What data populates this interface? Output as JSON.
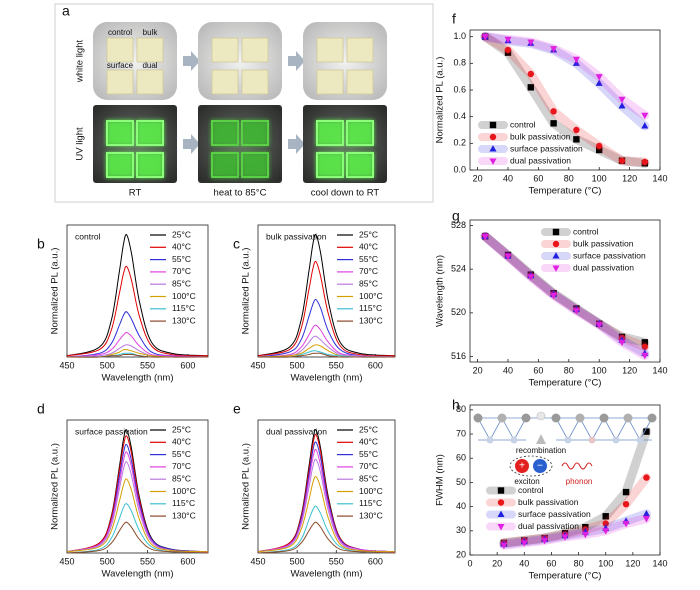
{
  "photo_panel": {
    "panel_label": "a",
    "row_labels": [
      "white light",
      "UV light"
    ],
    "column_labels": [
      "RT",
      "heat to 85°C",
      "cool down to RT"
    ],
    "sample_labels": [
      "control",
      "bulk",
      "surface",
      "dual"
    ]
  },
  "chart_data": [
    {
      "type": "line",
      "panel_label": "b",
      "title": "control",
      "xlabel": "Wavelength (nm)",
      "ylabel": "Normalized PL (a.u.)",
      "xlim": [
        450,
        625
      ],
      "ylim": [
        0,
        1.08
      ],
      "xticks": [
        450,
        500,
        550,
        600
      ],
      "legend": "top-right",
      "smooth": true,
      "x": [
        450,
        490,
        505,
        515,
        520,
        524,
        530,
        540,
        555,
        580,
        625
      ],
      "series": [
        {
          "name": "25°C",
          "color": "#000000",
          "values": [
            0.01,
            0.08,
            0.3,
            0.7,
            0.92,
            1,
            0.85,
            0.45,
            0.12,
            0.03,
            0.01
          ]
        },
        {
          "name": "40°C",
          "color": "#e00000",
          "values": [
            0.01,
            0.06,
            0.22,
            0.52,
            0.68,
            0.74,
            0.63,
            0.33,
            0.09,
            0.02,
            0.01
          ]
        },
        {
          "name": "55°C",
          "color": "#2f2fd8",
          "values": [
            0,
            0.03,
            0.11,
            0.26,
            0.34,
            0.37,
            0.31,
            0.17,
            0.04,
            0.01,
            0
          ]
        },
        {
          "name": "70°C",
          "color": "#e040e0",
          "values": [
            0,
            0.02,
            0.06,
            0.14,
            0.18,
            0.2,
            0.17,
            0.09,
            0.02,
            0.01,
            0
          ]
        },
        {
          "name": "85°C",
          "color": "#b878e0",
          "values": [
            0,
            0.01,
            0.03,
            0.07,
            0.09,
            0.1,
            0.09,
            0.05,
            0.01,
            0,
            0
          ]
        },
        {
          "name": "100°C",
          "color": "#d4a000",
          "values": [
            0,
            0,
            0.02,
            0.04,
            0.06,
            0.06,
            0.05,
            0.03,
            0.01,
            0,
            0
          ]
        },
        {
          "name": "115°C",
          "color": "#3cc0d0",
          "values": [
            0,
            0,
            0.01,
            0.02,
            0.03,
            0.03,
            0.03,
            0.01,
            0,
            0,
            0
          ]
        },
        {
          "name": "130°C",
          "color": "#8b4a2b",
          "values": [
            0,
            0,
            0.01,
            0.01,
            0.02,
            0.02,
            0.02,
            0.01,
            0,
            0,
            0
          ]
        }
      ]
    },
    {
      "type": "line",
      "panel_label": "c",
      "title": "bulk passivation",
      "xlabel": "Wavelength (nm)",
      "ylabel": "Normalized PL (a.u.)",
      "xlim": [
        450,
        625
      ],
      "ylim": [
        0,
        1.08
      ],
      "xticks": [
        450,
        500,
        550,
        600
      ],
      "legend": "top-right",
      "smooth": true,
      "x": [
        450,
        490,
        505,
        515,
        520,
        524,
        530,
        540,
        555,
        580,
        625
      ],
      "series": [
        {
          "name": "25°C",
          "color": "#000000",
          "values": [
            0.01,
            0.08,
            0.3,
            0.7,
            0.92,
            1,
            0.85,
            0.45,
            0.12,
            0.03,
            0.01
          ]
        },
        {
          "name": "40°C",
          "color": "#e00000",
          "values": [
            0.01,
            0.06,
            0.23,
            0.55,
            0.72,
            0.78,
            0.66,
            0.35,
            0.09,
            0.02,
            0.01
          ]
        },
        {
          "name": "55°C",
          "color": "#2f2fd8",
          "values": [
            0,
            0.04,
            0.14,
            0.33,
            0.43,
            0.47,
            0.4,
            0.21,
            0.06,
            0.01,
            0
          ]
        },
        {
          "name": "70°C",
          "color": "#e040e0",
          "values": [
            0,
            0.02,
            0.08,
            0.18,
            0.24,
            0.26,
            0.22,
            0.12,
            0.03,
            0.01,
            0
          ]
        },
        {
          "name": "85°C",
          "color": "#b878e0",
          "values": [
            0,
            0.01,
            0.05,
            0.12,
            0.16,
            0.17,
            0.14,
            0.08,
            0.02,
            0.01,
            0
          ]
        },
        {
          "name": "100°C",
          "color": "#d4a000",
          "values": [
            0,
            0.01,
            0.03,
            0.07,
            0.09,
            0.1,
            0.09,
            0.05,
            0.01,
            0,
            0
          ]
        },
        {
          "name": "115°C",
          "color": "#3cc0d0",
          "values": [
            0,
            0,
            0.02,
            0.04,
            0.05,
            0.05,
            0.04,
            0.02,
            0.01,
            0,
            0
          ]
        },
        {
          "name": "130°C",
          "color": "#8b4a2b",
          "values": [
            0,
            0,
            0.01,
            0.02,
            0.03,
            0.03,
            0.03,
            0.01,
            0,
            0,
            0
          ]
        }
      ]
    },
    {
      "type": "line",
      "panel_label": "d",
      "title": "surface passivation",
      "xlabel": "Wavelength (nm)",
      "ylabel": "Normalized PL (a.u.)",
      "xlim": [
        450,
        625
      ],
      "ylim": [
        0,
        1.08
      ],
      "xticks": [
        450,
        500,
        550,
        600
      ],
      "legend": "top-right",
      "smooth": true,
      "x": [
        450,
        490,
        505,
        515,
        520,
        524,
        530,
        540,
        555,
        580,
        625
      ],
      "series": [
        {
          "name": "25°C",
          "color": "#000000",
          "values": [
            0.01,
            0.08,
            0.3,
            0.7,
            0.92,
            1,
            0.85,
            0.45,
            0.12,
            0.03,
            0.01
          ]
        },
        {
          "name": "40°C",
          "color": "#e00000",
          "values": [
            0.01,
            0.08,
            0.29,
            0.67,
            0.87,
            0.95,
            0.81,
            0.43,
            0.11,
            0.03,
            0.01
          ]
        },
        {
          "name": "55°C",
          "color": "#2f2fd8",
          "values": [
            0.01,
            0.07,
            0.26,
            0.62,
            0.81,
            0.88,
            0.75,
            0.4,
            0.11,
            0.03,
            0.01
          ]
        },
        {
          "name": "70°C",
          "color": "#e040e0",
          "values": [
            0.01,
            0.07,
            0.25,
            0.57,
            0.75,
            0.82,
            0.7,
            0.37,
            0.1,
            0.02,
            0.01
          ]
        },
        {
          "name": "85°C",
          "color": "#b878e0",
          "values": [
            0.01,
            0.06,
            0.22,
            0.52,
            0.68,
            0.74,
            0.63,
            0.33,
            0.09,
            0.02,
            0.01
          ]
        },
        {
          "name": "100°C",
          "color": "#d4a000",
          "values": [
            0.01,
            0.05,
            0.18,
            0.42,
            0.55,
            0.6,
            0.51,
            0.27,
            0.07,
            0.02,
            0.01
          ]
        },
        {
          "name": "115°C",
          "color": "#3cc0d0",
          "values": [
            0,
            0.03,
            0.12,
            0.28,
            0.37,
            0.4,
            0.34,
            0.18,
            0.05,
            0.01,
            0
          ]
        },
        {
          "name": "130°C",
          "color": "#8b4a2b",
          "values": [
            0,
            0.02,
            0.08,
            0.18,
            0.23,
            0.25,
            0.21,
            0.11,
            0.03,
            0.01,
            0
          ]
        }
      ]
    },
    {
      "type": "line",
      "panel_label": "e",
      "title": "dual passivation",
      "xlabel": "Wavelength (nm)",
      "ylabel": "Normalized PL (a.u.)",
      "xlim": [
        450,
        625
      ],
      "ylim": [
        0,
        1.08
      ],
      "xticks": [
        450,
        500,
        550,
        600
      ],
      "legend": "top-right",
      "smooth": true,
      "x": [
        450,
        490,
        505,
        515,
        520,
        524,
        530,
        540,
        555,
        580,
        625
      ],
      "series": [
        {
          "name": "25°C",
          "color": "#000000",
          "values": [
            0.01,
            0.08,
            0.3,
            0.7,
            0.92,
            1,
            0.85,
            0.45,
            0.12,
            0.03,
            0.01
          ]
        },
        {
          "name": "40°C",
          "color": "#e00000",
          "values": [
            0.01,
            0.08,
            0.29,
            0.67,
            0.88,
            0.96,
            0.82,
            0.43,
            0.12,
            0.03,
            0.01
          ]
        },
        {
          "name": "55°C",
          "color": "#2f2fd8",
          "values": [
            0.01,
            0.07,
            0.27,
            0.63,
            0.83,
            0.9,
            0.77,
            0.41,
            0.11,
            0.03,
            0.01
          ]
        },
        {
          "name": "70°C",
          "color": "#e040e0",
          "values": [
            0.01,
            0.07,
            0.25,
            0.59,
            0.77,
            0.84,
            0.71,
            0.38,
            0.1,
            0.03,
            0.01
          ]
        },
        {
          "name": "85°C",
          "color": "#b878e0",
          "values": [
            0.01,
            0.06,
            0.23,
            0.53,
            0.7,
            0.76,
            0.65,
            0.34,
            0.09,
            0.02,
            0.01
          ]
        },
        {
          "name": "100°C",
          "color": "#d4a000",
          "values": [
            0.01,
            0.05,
            0.19,
            0.43,
            0.57,
            0.62,
            0.53,
            0.28,
            0.07,
            0.02,
            0.01
          ]
        },
        {
          "name": "115°C",
          "color": "#3cc0d0",
          "values": [
            0,
            0.03,
            0.11,
            0.27,
            0.35,
            0.38,
            0.32,
            0.17,
            0.05,
            0.01,
            0
          ]
        },
        {
          "name": "130°C",
          "color": "#8b4a2b",
          "values": [
            0,
            0.02,
            0.08,
            0.18,
            0.23,
            0.25,
            0.21,
            0.11,
            0.03,
            0.01,
            0
          ]
        }
      ]
    },
    {
      "type": "line",
      "panel_label": "f",
      "xlabel": "Temperature (°C)",
      "ylabel": "Normalized PL (a.u.)",
      "xlim": [
        15,
        140
      ],
      "ylim": [
        0,
        1.05
      ],
      "xticks": [
        20,
        40,
        60,
        80,
        100,
        120,
        140
      ],
      "yticks": [
        {
          "value": 0,
          "label": "0.0"
        },
        0.2,
        0.4,
        0.6,
        0.8,
        {
          "value": 1,
          "label": "1.0"
        }
      ],
      "legend": "bottom-left",
      "markers": true,
      "band": true,
      "x": [
        25,
        40,
        55,
        70,
        85,
        100,
        115,
        130
      ],
      "series": [
        {
          "name": "control",
          "color": "#000000",
          "marker": "square",
          "values": [
            1,
            0.88,
            0.62,
            0.35,
            0.23,
            0.15,
            0.07,
            0.05
          ]
        },
        {
          "name": "bulk passivation",
          "color": "#e8151b",
          "marker": "circle",
          "values": [
            1,
            0.9,
            0.72,
            0.44,
            0.3,
            0.18,
            0.07,
            0.06
          ]
        },
        {
          "name": "surface passivation",
          "color": "#1f1fe0",
          "marker": "triangle-up",
          "values": [
            1,
            0.97,
            0.95,
            0.9,
            0.8,
            0.65,
            0.48,
            0.33
          ]
        },
        {
          "name": "dual passivation",
          "color": "#e020e0",
          "marker": "triangle-down",
          "values": [
            1,
            0.98,
            0.96,
            0.91,
            0.83,
            0.7,
            0.53,
            0.41
          ]
        }
      ]
    },
    {
      "type": "line",
      "panel_label": "g",
      "xlabel": "Temperature (°C)",
      "ylabel": "Wavelength (nm)",
      "xlim": [
        15,
        140
      ],
      "ylim": [
        515.5,
        528.5
      ],
      "xticks": [
        20,
        40,
        60,
        80,
        100,
        120,
        140
      ],
      "yticks": [
        516,
        520,
        524,
        528
      ],
      "legend": "top-right",
      "markers": true,
      "band": true,
      "x": [
        25,
        40,
        55,
        70,
        85,
        100,
        115,
        130
      ],
      "series": [
        {
          "name": "control",
          "color": "#000000",
          "marker": "square",
          "values": [
            527,
            525.3,
            523.5,
            521.8,
            520.4,
            519,
            517.8,
            517.3
          ]
        },
        {
          "name": "bulk passivation",
          "color": "#e8151b",
          "marker": "circle",
          "values": [
            527,
            525.2,
            523.4,
            521.7,
            520.3,
            519,
            517.7,
            516.9
          ]
        },
        {
          "name": "surface passivation",
          "color": "#1f1fe0",
          "marker": "triangle-up",
          "values": [
            527,
            525.2,
            523.4,
            521.7,
            520.3,
            519,
            517.5,
            516.3
          ]
        },
        {
          "name": "dual passivation",
          "color": "#e020e0",
          "marker": "triangle-down",
          "values": [
            527,
            525.2,
            523.3,
            521.6,
            520.2,
            518.9,
            517.3,
            516.1
          ]
        }
      ]
    },
    {
      "type": "line",
      "panel_label": "h",
      "xlabel": "Temperature (°C)",
      "ylabel": "FWHM (nm)",
      "xlim": [
        0,
        140
      ],
      "ylim": [
        20,
        82
      ],
      "xticks": [
        0,
        20,
        40,
        60,
        80,
        100,
        120,
        140
      ],
      "yticks": [
        20,
        30,
        40,
        50,
        60,
        70,
        80
      ],
      "legend": "center-left",
      "markers": true,
      "band": true,
      "annotations": [
        "recombination",
        "exciton",
        "phonon",
        "+",
        "−"
      ],
      "x": [
        25,
        40,
        55,
        70,
        85,
        100,
        115,
        130
      ],
      "series": [
        {
          "name": "control",
          "color": "#000000",
          "marker": "square",
          "values": [
            25,
            26,
            27,
            29,
            31.5,
            36,
            46,
            71
          ]
        },
        {
          "name": "bulk passivation",
          "color": "#e8151b",
          "marker": "circle",
          "values": [
            25,
            26,
            27,
            28.5,
            30.5,
            33,
            41,
            52
          ]
        },
        {
          "name": "surface passivation",
          "color": "#1f1fe0",
          "marker": "triangle-up",
          "values": [
            24.5,
            25.5,
            26.5,
            28,
            29.5,
            31,
            34,
            37
          ]
        },
        {
          "name": "dual passivation",
          "color": "#e020e0",
          "marker": "triangle-down",
          "values": [
            24,
            25,
            26,
            27.5,
            28.5,
            30,
            33,
            35
          ]
        }
      ]
    }
  ]
}
